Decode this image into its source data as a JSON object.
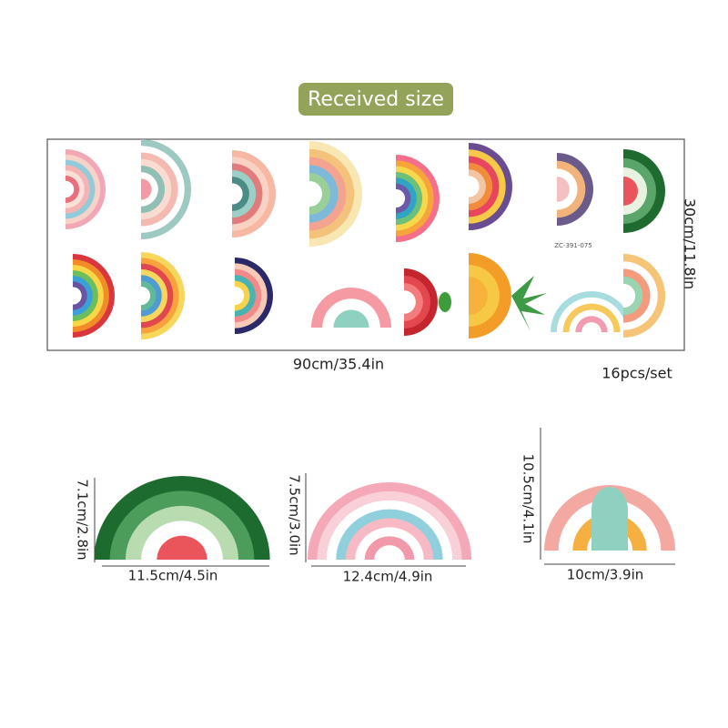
{
  "header": {
    "title": "Received size"
  },
  "sheet": {
    "height_label": "30cm/11.8in",
    "width_label": "90cm/35.4in",
    "count_label": "16pcs/set",
    "code": "ZC-391-075"
  },
  "details": [
    {
      "width_label": "11.5cm/4.5in",
      "height_label": "7.1cm/2.8in"
    },
    {
      "width_label": "12.4cm/4.9in",
      "height_label": "7.5cm/3.0in"
    },
    {
      "width_label": "10cm/3.9in",
      "height_label": "10.5cm/4.1in"
    }
  ]
}
